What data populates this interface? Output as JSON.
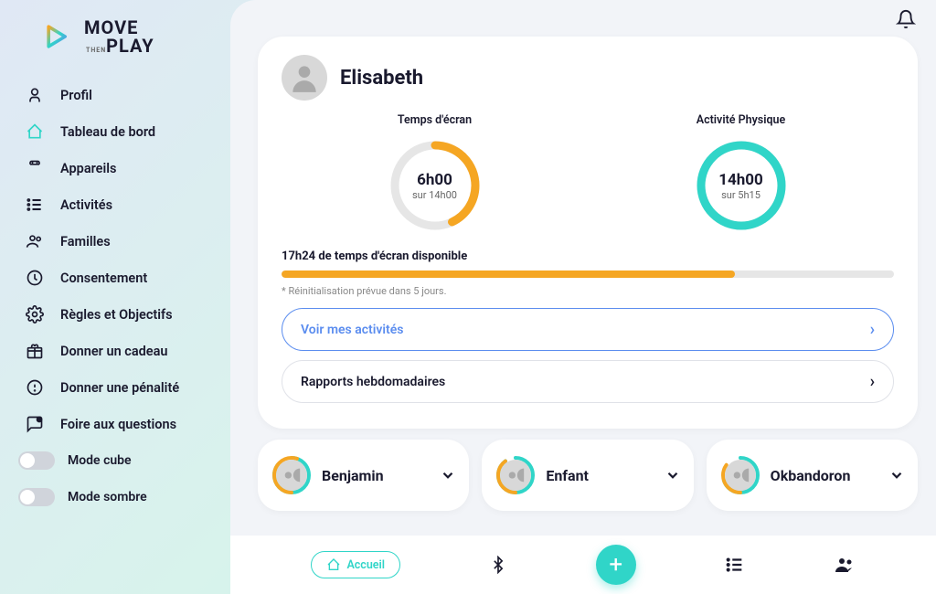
{
  "colors": {
    "accent_teal": "#30d5c8",
    "accent_orange": "#f5a623",
    "accent_blue": "#5b8def",
    "text_dark": "#1a1a2e",
    "bg_gray": "#f2f4f8"
  },
  "logo": {
    "line1": "MOVE",
    "tiny": "THEN",
    "line2": "PLAY"
  },
  "sidebar": {
    "items": [
      {
        "label": "Profil",
        "active": false
      },
      {
        "label": "Tableau de bord",
        "active": true
      },
      {
        "label": "Appareils",
        "active": false
      },
      {
        "label": "Activités",
        "active": false
      },
      {
        "label": "Familles",
        "active": false
      },
      {
        "label": "Consentement",
        "active": false
      },
      {
        "label": "Règles et Objectifs",
        "active": false
      },
      {
        "label": "Donner un cadeau",
        "active": false
      },
      {
        "label": "Donner une pénalité",
        "active": false
      },
      {
        "label": "Foire aux questions",
        "active": false
      }
    ],
    "toggles": [
      {
        "label": "Mode cube",
        "on": false
      },
      {
        "label": "Mode sombre",
        "on": false
      }
    ]
  },
  "profile": {
    "name": "Elisabeth"
  },
  "gauges": {
    "screen": {
      "label": "Temps d'écran",
      "value": "6h00",
      "sub": "sur 14h00",
      "percent": 43,
      "color": "#f5a623",
      "track": "#e6e6e6"
    },
    "activity": {
      "label": "Activité Physique",
      "value": "14h00",
      "sub": "sur 5h15",
      "percent": 100,
      "color": "#30d5c8",
      "track": "#e6e6e6"
    }
  },
  "available": {
    "label": "17h24 de temps d'écran disponible",
    "percent": 74,
    "color": "#f5a623",
    "note": "* Réinitialisation prévue dans 5 jours."
  },
  "actions": {
    "view_activities": "Voir mes activités",
    "weekly_reports": "Rapports hebdomadaires"
  },
  "children": [
    {
      "name": "Benjamin",
      "ring_teal": 85,
      "ring_orange": 55
    },
    {
      "name": "Enfant",
      "ring_teal": 90,
      "ring_orange": 40
    },
    {
      "name": "Okbandoron",
      "ring_teal": 70,
      "ring_orange": 35
    }
  ],
  "bottombar": {
    "home": "Accueil"
  }
}
